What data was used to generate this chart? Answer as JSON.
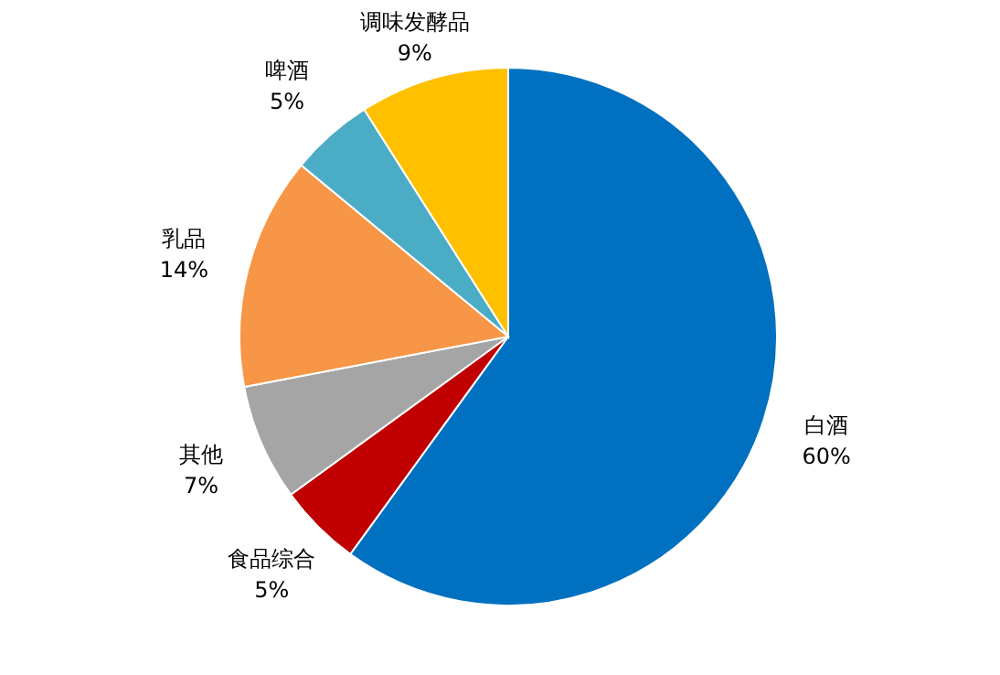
{
  "chart_data": {
    "type": "pie",
    "categories": [
      "白酒",
      "食品综合",
      "其他",
      "乳品",
      "啤酒",
      "调味发酵品"
    ],
    "values": [
      60,
      5,
      7,
      14,
      5,
      9
    ],
    "colors": [
      "#0070c0",
      "#c00000",
      "#a5a5a5",
      "#f79646",
      "#4bacc6",
      "#ffc000"
    ],
    "value_labels": [
      "60%",
      "5%",
      "7%",
      "14%",
      "5%",
      "9%"
    ]
  }
}
